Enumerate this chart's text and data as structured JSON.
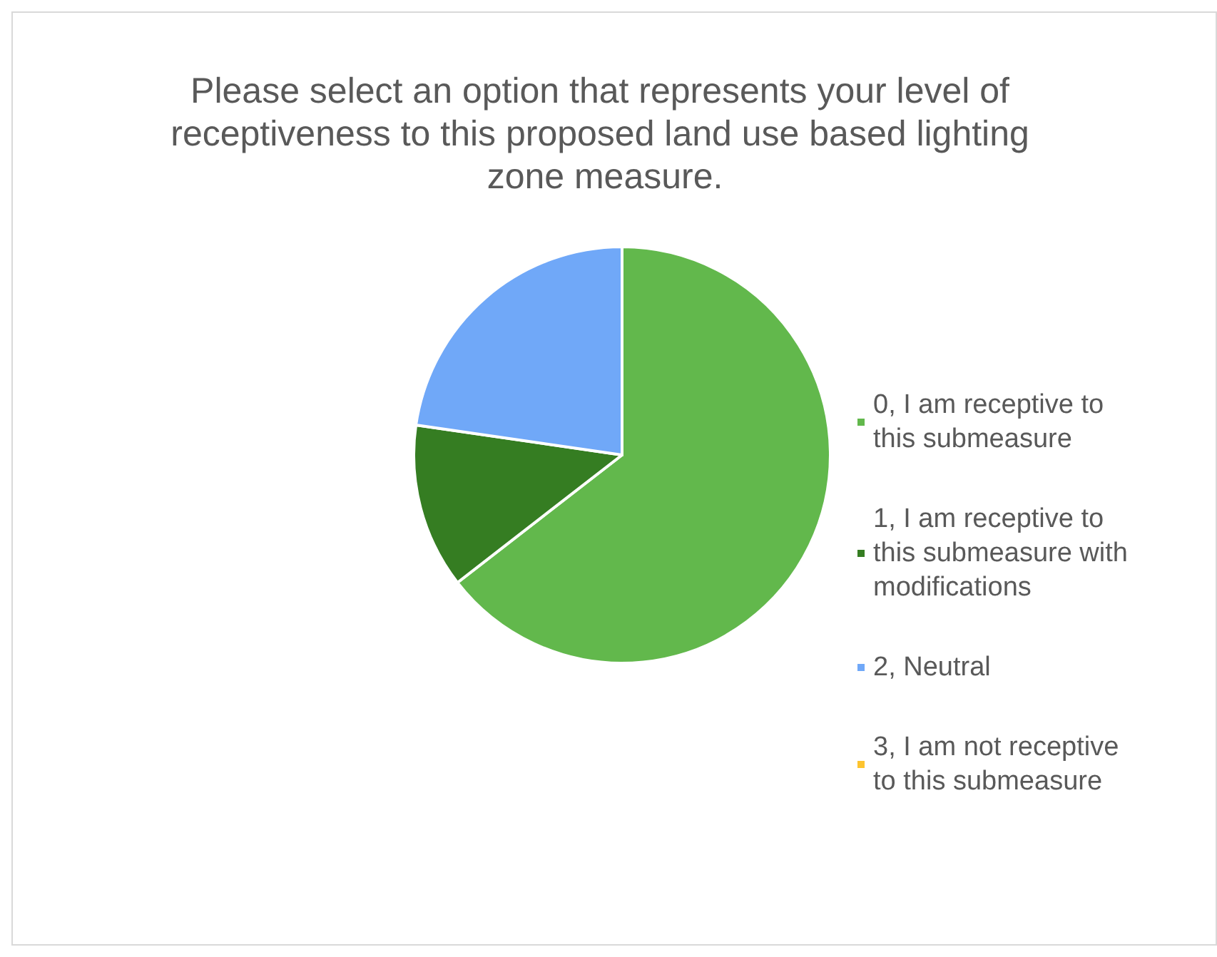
{
  "chart_data": {
    "type": "pie",
    "title": "Please select an option that represents your level of receptiveness to this proposed land use based lighting zone measure.",
    "categories": [
      "0, I am receptive to this submeasure",
      "1, I am receptive to this submeasure with modifications",
      "2, Neutral",
      "3, I am not receptive to this submeasure"
    ],
    "values": [
      64.5,
      12.8,
      22.7,
      0
    ],
    "colors": [
      "#62b84c",
      "#357d22",
      "#70a8f8",
      "#fdc42f"
    ],
    "legend": "right"
  }
}
